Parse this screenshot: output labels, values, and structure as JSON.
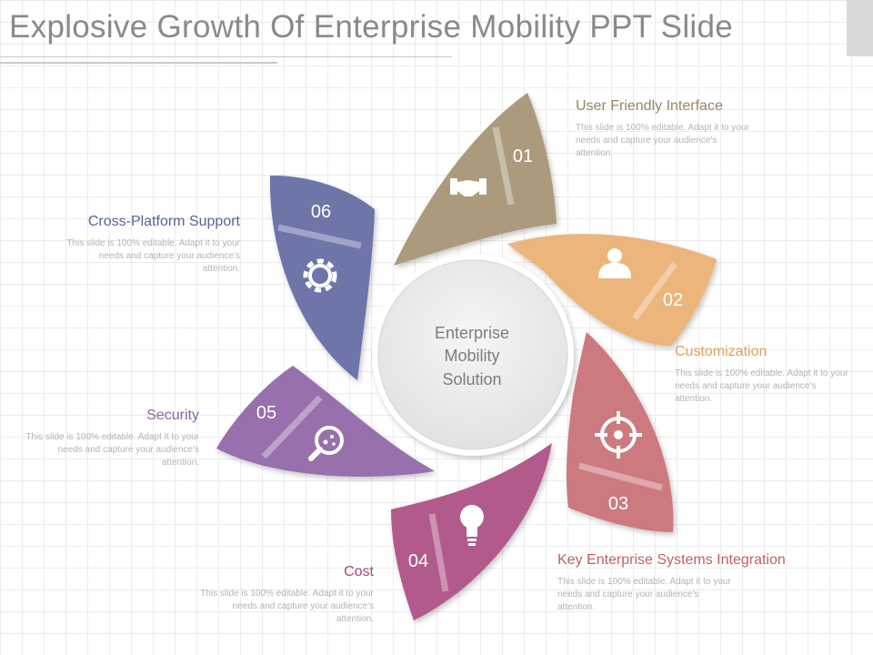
{
  "slide": {
    "title": "Explosive Growth Of  Enterprise Mobility PPT Slide"
  },
  "center": {
    "lines": [
      "Enterprise",
      "Mobility",
      "Solution"
    ]
  },
  "petals": [
    {
      "number": "01",
      "heading": "User Friendly Interface",
      "description": "This slide is 100% editable. Adapt it to your needs and capture your audience's attention.",
      "color": "#ab9b7c",
      "icon": "handshake-icon"
    },
    {
      "number": "02",
      "heading": "Customization",
      "description": "This slide is 100% editable. Adapt it to your needs and capture your audience's attention.",
      "color": "#ecb57c",
      "icon": "person-icon"
    },
    {
      "number": "03",
      "heading": "Key Enterprise Systems Integration",
      "description": "This slide is 100% editable. Adapt it to your needs and capture your audience's attention.",
      "color": "#cc7a80",
      "icon": "target-icon"
    },
    {
      "number": "04",
      "heading": "Cost",
      "description": "This slide is 100% editable. Adapt it to your needs and capture your audience's attention.",
      "color": "#b25a8b",
      "icon": "lightbulb-icon"
    },
    {
      "number": "05",
      "heading": "Security",
      "description": "This slide is 100% editable. Adapt it to your needs and capture your audience's attention.",
      "color": "#9770ad",
      "icon": "magnifier-icon"
    },
    {
      "number": "06",
      "heading": "Cross-Platform Support",
      "description": "This slide is 100% editable. Adapt it to your needs and capture your audience's attention.",
      "color": "#6d74a9",
      "icon": "gear-icon"
    }
  ]
}
